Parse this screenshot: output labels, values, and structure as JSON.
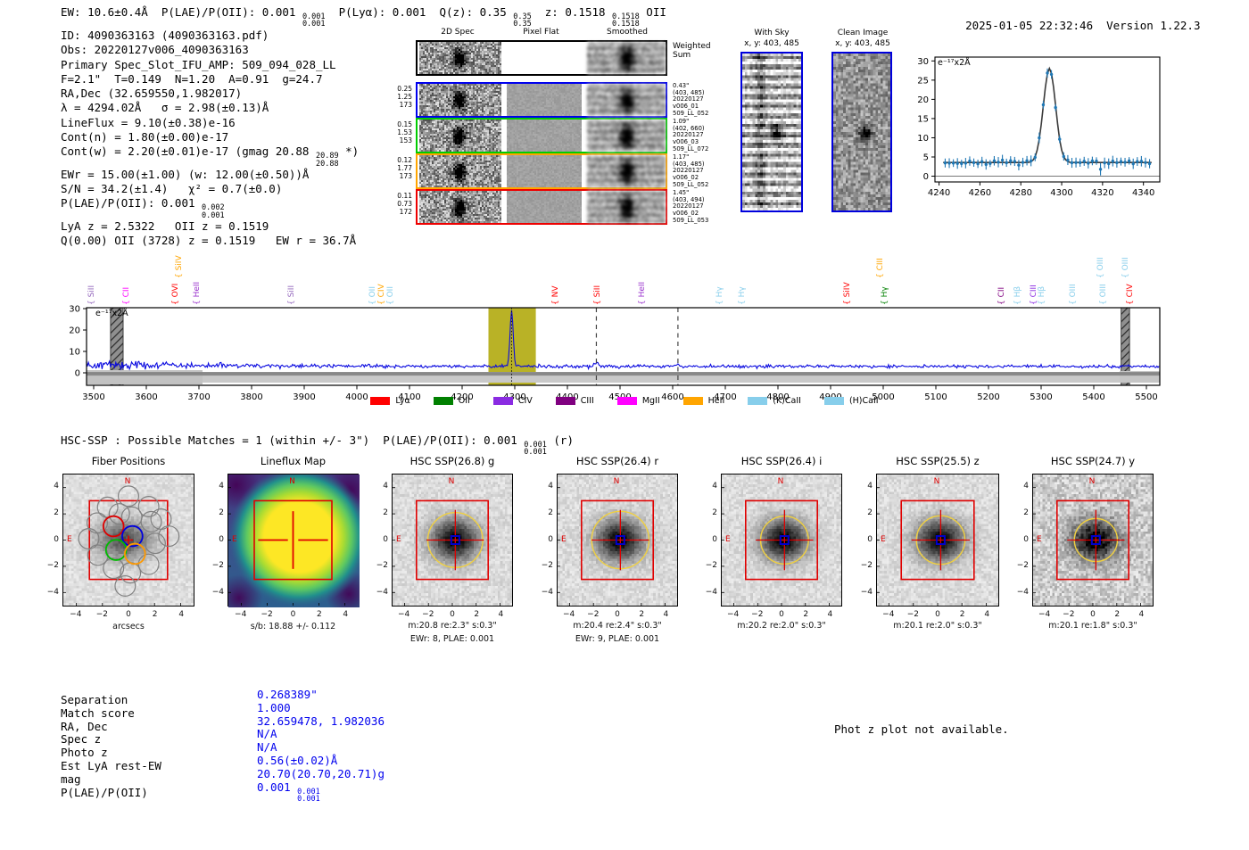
{
  "meta": {
    "generated": "2025-01-05 22:32:46",
    "version": "Version 1.22.3"
  },
  "header": {
    "segments": [
      {
        "t": "EW: 10.6±0.4Å  P(LAE)/P(OII): 0.001 "
      },
      {
        "frac": [
          "0.001",
          "0.001"
        ]
      },
      {
        "t": "  P(Lyα): 0.001  Q(z): 0.35 "
      },
      {
        "frac": [
          "0.35",
          "0.35"
        ]
      },
      {
        "t": "  z: 0.1518 "
      },
      {
        "frac": [
          "0.1518",
          "0.1518"
        ]
      },
      {
        "t": " OII"
      }
    ]
  },
  "info_block": {
    "lines": [
      [
        {
          "t": "ID: 4090363163 (4090363163.pdf)"
        }
      ],
      [
        {
          "t": "Obs: 20220127v006_4090363163"
        }
      ],
      [
        {
          "t": "Primary Spec_Slot_IFU_AMP: 509_094_028_LL"
        }
      ],
      [
        {
          "t": "F=2.1\"  T=0.149  N=1.20  A=0.91  g=24.7"
        }
      ],
      [
        {
          "t": "RA,Dec (32.659550,1.982017)"
        }
      ],
      [
        {
          "t": "λ = 4294.02Å   σ = 2.98(±0.13)Å"
        }
      ],
      [
        {
          "t": "LineFlux = 9.10(±0.38)e-16"
        }
      ],
      [
        {
          "t": "Cont(n) = 1.80(±0.00)e-17"
        }
      ],
      [
        {
          "t": "Cont(w) = 2.20(±0.01)e-17 (gmag 20.88 "
        },
        {
          "frac": [
            "20.89",
            "20.88"
          ]
        },
        {
          "t": " *)"
        }
      ],
      [
        {
          "t": "EWr = 15.00(±1.00) (w: 12.00(±0.50))Å"
        }
      ],
      [
        {
          "t": "S/N = 34.2(±1.4)   χ² = 0.7(±0.0)"
        }
      ],
      [
        {
          "t": "P(LAE)/P(OII): 0.001 "
        },
        {
          "frac": [
            "0.002",
            "0.001"
          ]
        }
      ],
      [
        {
          "t": "LyA z = 2.5322   OII z = 0.1519"
        }
      ],
      [
        {
          "t": "Q(0.00) OII (3728) z = 0.1519   EW r = 36.7Å"
        }
      ]
    ]
  },
  "spec2d": {
    "col_titles": [
      "2D Spec",
      "Pixel Flat",
      "Smoothed"
    ],
    "weighted_label": [
      "Weighted",
      "Sum"
    ],
    "rows": [
      {
        "color": "#0000ee",
        "left": [
          "0.25",
          "1.25",
          "173"
        ],
        "right": [
          "0.43\"",
          "(403, 485)",
          "20220127",
          "v006_01",
          "509_LL_052"
        ]
      },
      {
        "color": "#00cc00",
        "left": [
          "0.15",
          "1.53",
          "153"
        ],
        "right": [
          "1.09\"",
          "(402, 660)",
          "20220127",
          "v006_03",
          "509_LL_072"
        ]
      },
      {
        "color": "#ffa500",
        "left": [
          "0.12",
          "1.77",
          "173"
        ],
        "right": [
          "1.17\"",
          "(403, 485)",
          "20220127",
          "v006_02",
          "509_LL_052"
        ]
      },
      {
        "color": "#ee0000",
        "left": [
          "0.11",
          "0.73",
          "172"
        ],
        "right": [
          "1.45\"",
          "(403, 494)",
          "20220127",
          "v006_02",
          "509_LL_053"
        ]
      }
    ]
  },
  "stamps": {
    "with_sky": {
      "title": "With Sky",
      "subtitle": "x, y: 403, 485"
    },
    "clean": {
      "title": "Clean Image",
      "subtitle": "x, y: 403, 485"
    }
  },
  "hsc_header": {
    "segments": [
      {
        "t": "HSC-SSP : Possible Matches = 1 (within +/- 3\")  P(LAE)/P(OII): 0.001 "
      },
      {
        "frac": [
          "0.001",
          "0.001"
        ]
      },
      {
        "t": " (r)"
      }
    ]
  },
  "cutouts": {
    "axis_ticks": [
      -4,
      -2,
      0,
      2,
      4
    ],
    "compass": {
      "north": "N",
      "east": "E"
    },
    "panels": [
      {
        "title": "Fiber Positions",
        "type": "fiber",
        "xlabel": "arcsecs"
      },
      {
        "title": "Lineflux Map",
        "type": "lineflux",
        "xlabel": "s/b: 18.88 +/- 0.112"
      },
      {
        "title": "HSC SSP(26.8) g",
        "type": "image",
        "cap1": "m:20.8  re:2.3\"  s:0.3\"",
        "cap2": "EWr: 8, PLAE: 0.001",
        "re": 2.3
      },
      {
        "title": "HSC SSP(26.4) r",
        "type": "image",
        "cap1": "m:20.4  re:2.4\"  s:0.3\"",
        "cap2": "EWr: 9, PLAE: 0.001",
        "re": 2.4
      },
      {
        "title": "HSC SSP(26.4) i",
        "type": "image",
        "cap1": "m:20.2  re:2.0\"  s:0.3\"",
        "re": 2.0
      },
      {
        "title": "HSC SSP(25.5) z",
        "type": "image",
        "cap1": "m:20.1  re:2.0\"  s:0.3\"",
        "re": 2.0
      },
      {
        "title": "HSC SSP(24.7) y",
        "type": "image",
        "cap1": "m:20.1  re:1.8\"  s:0.3\"",
        "re": 1.8
      }
    ]
  },
  "match_table": {
    "rows": [
      {
        "label": "Separation",
        "value": "0.268389\""
      },
      {
        "label": "Match score",
        "value": "1.000"
      },
      {
        "label": "RA, Dec",
        "value": "32.659478, 1.982036"
      },
      {
        "label": "Spec z",
        "value": "N/A"
      },
      {
        "label": "Photo z",
        "value": "N/A"
      },
      {
        "label": "Est LyA rest-EW",
        "value": "0.56(±0.02)Å"
      },
      {
        "label": "mag",
        "value": "20.70(20.70,20.71)g"
      },
      {
        "label": "P(LAE)/P(OII)",
        "value": "0.001 ",
        "frac": [
          "0.001",
          "0.001"
        ]
      }
    ]
  },
  "photz_note": "Phot z plot not available.",
  "chart_data": [
    {
      "id": "line_fit",
      "type": "scatter",
      "unit_label": "e⁻¹⁷x2Å",
      "xlim": [
        4238,
        4348
      ],
      "ylim": [
        -1.5,
        31
      ],
      "xticks": [
        4240,
        4260,
        4280,
        4300,
        4320,
        4340
      ],
      "yticks": [
        0,
        5,
        10,
        15,
        20,
        25,
        30
      ],
      "baseline": 3.5,
      "gaussian_fit": {
        "center": 4294.02,
        "sigma": 2.98,
        "peak_height": 28.0
      },
      "point_color": "#1f77b4",
      "fit_color": "#3a3a3a"
    },
    {
      "id": "full_spectrum",
      "type": "line",
      "unit_label": "e⁻¹⁷x2Å",
      "xlim": [
        3486,
        5525
      ],
      "ylim": [
        -5.8,
        30.4
      ],
      "xticks": [
        3500,
        3600,
        3700,
        3800,
        3900,
        4000,
        4100,
        4200,
        4300,
        4400,
        4500,
        4600,
        4700,
        4800,
        4900,
        5000,
        5100,
        5200,
        5300,
        5400,
        5500
      ],
      "yticks": [
        0,
        10,
        20,
        30
      ],
      "line_color": "#0a0ae0",
      "baseline": 3.2,
      "emission_peak": {
        "center": 4294.02,
        "sigma": 2.98,
        "height": 30
      },
      "highlight_band": {
        "from": 4250,
        "to": 4340,
        "color": "#b9b226"
      },
      "hatched_bands": [
        [
          3532,
          3556
        ],
        [
          5452,
          5468
        ]
      ],
      "dashed_lines": [
        4455,
        4610
      ],
      "dotted_line": 4294.02,
      "line_labels": [
        {
          "text": "SiII",
          "wave": 3497,
          "color": "#9467bd",
          "tier": 1
        },
        {
          "text": "CII",
          "wave": 3563,
          "color": "#ff00ff",
          "tier": 1
        },
        {
          "text": "OVI",
          "wave": 3656,
          "color": "#ff0000",
          "tier": 1
        },
        {
          "text": "SiIV",
          "wave": 3662,
          "color": "#ffa500",
          "tier": 2
        },
        {
          "text": "HeII",
          "wave": 3697,
          "color": "#9932cc",
          "tier": 1
        },
        {
          "text": "SiII",
          "wave": 3876,
          "color": "#9467bd",
          "tier": 1
        },
        {
          "text": "OII",
          "wave": 4030,
          "color": "#87ceeb",
          "tier": 1
        },
        {
          "text": "CIV",
          "wave": 4047,
          "color": "#ffa500",
          "tier": 1
        },
        {
          "text": "OII",
          "wave": 4064,
          "color": "#87ceeb",
          "tier": 1
        },
        {
          "text": "NV",
          "wave": 4378,
          "color": "#ff0000",
          "tier": 1
        },
        {
          "text": "SiII",
          "wave": 4458,
          "color": "#ff0000",
          "tier": 1
        },
        {
          "text": "HeII",
          "wave": 4542,
          "color": "#9932cc",
          "tier": 1
        },
        {
          "text": "Hγ",
          "wave": 4690,
          "color": "#87ceeb",
          "tier": 1
        },
        {
          "text": "Hγ",
          "wave": 4732,
          "color": "#87ceeb",
          "tier": 1
        },
        {
          "text": "SiIV",
          "wave": 4932,
          "color": "#ff0000",
          "tier": 1
        },
        {
          "text": "CIII",
          "wave": 4995,
          "color": "#ffa500",
          "tier": 2
        },
        {
          "text": "Hγ",
          "wave": 5003,
          "color": "#008000",
          "tier": 1
        },
        {
          "text": "CII",
          "wave": 5225,
          "color": "#800080",
          "tier": 1
        },
        {
          "text": "Hβ",
          "wave": 5256,
          "color": "#87ceeb",
          "tier": 1
        },
        {
          "text": "CIII",
          "wave": 5286,
          "color": "#8a2be2",
          "tier": 1
        },
        {
          "text": "Hβ",
          "wave": 5302,
          "color": "#87ceeb",
          "tier": 1
        },
        {
          "text": "OIII",
          "wave": 5361,
          "color": "#87ceeb",
          "tier": 1
        },
        {
          "text": "OIII",
          "wave": 5413,
          "color": "#87ceeb",
          "tier": 2
        },
        {
          "text": "OIII",
          "wave": 5418,
          "color": "#87ceeb",
          "tier": 1
        },
        {
          "text": "OIII",
          "wave": 5461,
          "color": "#87ceeb",
          "tier": 2
        },
        {
          "text": "CIV",
          "wave": 5469,
          "color": "#ff0000",
          "tier": 1
        }
      ],
      "legend": [
        {
          "label": "Lyα",
          "color": "#ff0000"
        },
        {
          "label": "OII",
          "color": "#008000"
        },
        {
          "label": "CIV",
          "color": "#8a2be2"
        },
        {
          "label": "CIII",
          "color": "#800080"
        },
        {
          "label": "MgII",
          "color": "#ff00ff"
        },
        {
          "label": "HeII",
          "color": "#ffa500"
        },
        {
          "label": "(K)CaII",
          "color": "#87ceeb"
        },
        {
          "label": "(H)CaII",
          "color": "#87ceeb"
        }
      ]
    }
  ]
}
